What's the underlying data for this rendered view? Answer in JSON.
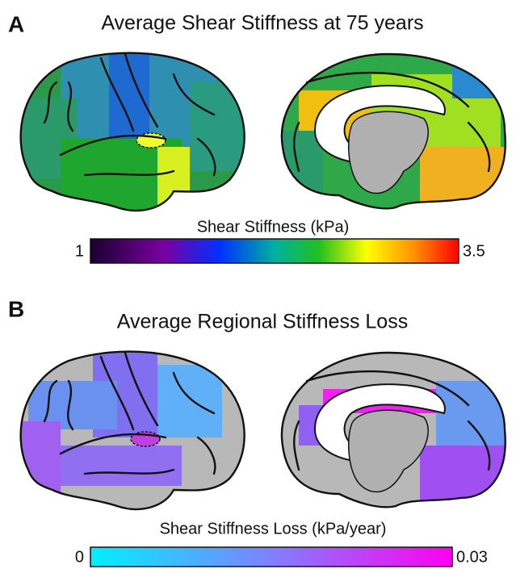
{
  "panels": [
    {
      "letter": "A",
      "title": "Average Shear Stiffness at 75 years",
      "colorbar": {
        "label": "Shear Stiffness (kPa)",
        "min": 1,
        "max": 3.5
      }
    },
    {
      "letter": "B",
      "title": "Average Regional Stiffness Loss",
      "colorbar": {
        "label": "Shear Stiffness Loss (kPa/year)",
        "min": 0,
        "max": 0.03
      }
    }
  ]
}
